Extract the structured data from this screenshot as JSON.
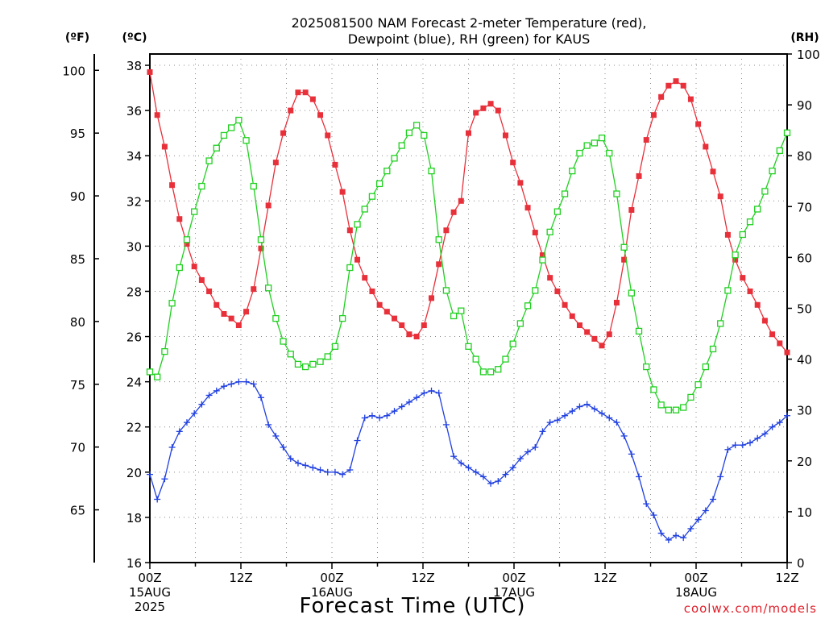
{
  "chart_data": {
    "type": "line",
    "title": "2025081500 NAM Forecast 2-meter Temperature (red),",
    "subtitle": "Dewpoint (blue), RH (green) for KAUS",
    "xlabel": "Forecast Time (UTC)",
    "credit": "coolwx.com/models",
    "units": {
      "left_f": "(ºF)",
      "left_c": "(ºC)",
      "right": "(RH)"
    },
    "ylim_c": [
      16,
      38.5
    ],
    "ylim_rh": [
      0,
      100
    ],
    "yticks_c": [
      "16",
      "18",
      "20",
      "22",
      "24",
      "26",
      "28",
      "30",
      "32",
      "34",
      "36",
      "38"
    ],
    "yticks_f": [
      "65",
      "70",
      "75",
      "80",
      "85",
      "90",
      "95",
      "100"
    ],
    "yticks_rh": [
      "0",
      "10",
      "20",
      "30",
      "40",
      "50",
      "60",
      "70",
      "80",
      "90",
      "100"
    ],
    "x_ticks": [
      {
        "hour": 0,
        "lines": [
          "00Z",
          "15AUG",
          "2025"
        ]
      },
      {
        "hour": 12,
        "lines": [
          "12Z"
        ]
      },
      {
        "hour": 24,
        "lines": [
          "00Z",
          "16AUG"
        ]
      },
      {
        "hour": 36,
        "lines": [
          "12Z"
        ]
      },
      {
        "hour": 48,
        "lines": [
          "00Z",
          "17AUG"
        ]
      },
      {
        "hour": 60,
        "lines": [
          "12Z"
        ]
      },
      {
        "hour": 72,
        "lines": [
          "00Z",
          "18AUG"
        ]
      },
      {
        "hour": 84,
        "lines": [
          "12Z"
        ]
      }
    ],
    "x_hours_start": 0,
    "x_hours_end": 84,
    "grid": true,
    "series": [
      {
        "name": "Temperature",
        "unit": "°C",
        "color": "#e8303a",
        "marker": "filled-square",
        "values": [
          37.7,
          35.8,
          34.4,
          32.7,
          31.2,
          30.1,
          29.1,
          28.5,
          28.0,
          27.4,
          27.0,
          26.8,
          26.5,
          27.1,
          28.1,
          29.9,
          31.8,
          33.7,
          35.0,
          36.0,
          36.8,
          36.8,
          36.5,
          35.8,
          34.9,
          33.6,
          32.4,
          30.7,
          29.4,
          28.6,
          28.0,
          27.4,
          27.1,
          26.8,
          26.5,
          26.1,
          26.0,
          26.5,
          27.7,
          29.2,
          30.7,
          31.5,
          32.0,
          35.0,
          35.9,
          36.1,
          36.3,
          36.0,
          34.9,
          33.7,
          32.8,
          31.7,
          30.6,
          29.6,
          28.6,
          28.0,
          27.4,
          26.9,
          26.5,
          26.2,
          25.9,
          25.6,
          26.1,
          27.5,
          29.4,
          31.6,
          33.1,
          34.7,
          35.8,
          36.6,
          37.1,
          37.3,
          37.1,
          36.5,
          35.4,
          34.4,
          33.3,
          32.2,
          30.5,
          29.4,
          28.6,
          28.0,
          27.4,
          26.7,
          26.1,
          25.7,
          25.3
        ]
      },
      {
        "name": "Dewpoint",
        "unit": "°C",
        "color": "#2040e0",
        "marker": "plus",
        "values": [
          19.9,
          18.8,
          19.7,
          21.1,
          21.8,
          22.2,
          22.6,
          23.0,
          23.4,
          23.6,
          23.8,
          23.9,
          24.0,
          24.0,
          23.9,
          23.3,
          22.1,
          21.6,
          21.1,
          20.6,
          20.4,
          20.3,
          20.2,
          20.1,
          20.0,
          20.0,
          19.9,
          20.1,
          21.4,
          22.4,
          22.5,
          22.4,
          22.5,
          22.7,
          22.9,
          23.1,
          23.3,
          23.5,
          23.6,
          23.5,
          22.1,
          20.7,
          20.4,
          20.2,
          20.0,
          19.8,
          19.5,
          19.6,
          19.9,
          20.2,
          20.6,
          20.9,
          21.1,
          21.8,
          22.2,
          22.3,
          22.5,
          22.7,
          22.9,
          23.0,
          22.8,
          22.6,
          22.4,
          22.2,
          21.6,
          20.8,
          19.8,
          18.6,
          18.1,
          17.3,
          17.0,
          17.2,
          17.1,
          17.5,
          17.9,
          18.3,
          18.8,
          19.8,
          21.0,
          21.2,
          21.2,
          21.3,
          21.5,
          21.7,
          22.0,
          22.2,
          22.5
        ]
      },
      {
        "name": "RH",
        "unit": "%",
        "color": "#20d020",
        "marker": "open-square",
        "values": [
          37.5,
          36.5,
          41.5,
          51.0,
          58.0,
          63.5,
          69.0,
          74.0,
          79.0,
          81.5,
          84.0,
          85.5,
          87.0,
          83.0,
          74.0,
          63.5,
          54.0,
          48.0,
          43.5,
          41.0,
          39.0,
          38.5,
          39.0,
          39.5,
          40.5,
          42.5,
          48.0,
          58.0,
          66.5,
          69.5,
          72.0,
          74.5,
          77.0,
          79.5,
          82.0,
          84.5,
          86.0,
          84.0,
          77.0,
          63.5,
          53.5,
          48.5,
          49.5,
          42.5,
          40.0,
          37.5,
          37.5,
          38.0,
          40.0,
          43.0,
          47.0,
          50.5,
          53.5,
          59.5,
          65.0,
          69.0,
          72.5,
          77.0,
          80.5,
          82.0,
          82.5,
          83.5,
          80.5,
          72.5,
          62.0,
          53.0,
          45.5,
          38.5,
          34.0,
          31.0,
          30.0,
          30.0,
          30.5,
          32.5,
          35.0,
          38.5,
          42.0,
          47.0,
          53.5,
          60.5,
          64.5,
          67.0,
          69.5,
          73.0,
          77.0,
          81.0,
          84.5
        ]
      }
    ]
  }
}
